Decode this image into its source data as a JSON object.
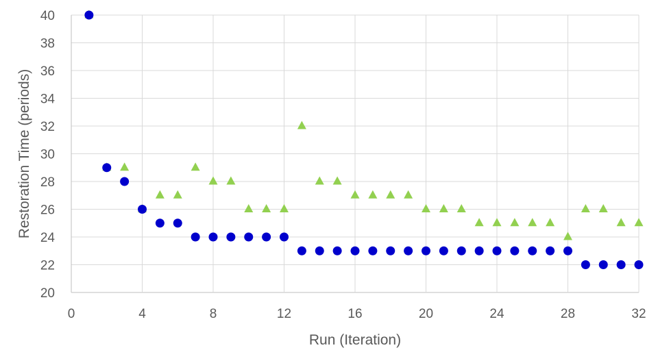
{
  "chart_data": {
    "type": "scatter",
    "title": "",
    "xlabel": "Run (Iteration)",
    "ylabel": "Restoration Time (periods)",
    "xlim": [
      0,
      32
    ],
    "ylim": [
      20,
      40
    ],
    "xticks": [
      0,
      4,
      8,
      12,
      16,
      20,
      24,
      28,
      32
    ],
    "yticks": [
      20,
      22,
      24,
      26,
      28,
      30,
      32,
      34,
      36,
      38,
      40
    ],
    "grid": true,
    "legend": "none",
    "series": [
      {
        "marker": "triangle",
        "color": "#92d050",
        "points": [
          [
            1,
            40
          ],
          [
            2,
            29
          ],
          [
            3,
            29
          ],
          [
            4,
            26
          ],
          [
            5,
            27
          ],
          [
            6,
            27
          ],
          [
            7,
            29
          ],
          [
            8,
            28
          ],
          [
            9,
            28
          ],
          [
            10,
            26
          ],
          [
            11,
            26
          ],
          [
            12,
            26
          ],
          [
            13,
            32
          ],
          [
            14,
            28
          ],
          [
            15,
            28
          ],
          [
            16,
            27
          ],
          [
            17,
            27
          ],
          [
            18,
            27
          ],
          [
            19,
            27
          ],
          [
            20,
            26
          ],
          [
            21,
            26
          ],
          [
            22,
            26
          ],
          [
            23,
            25
          ],
          [
            24,
            25
          ],
          [
            25,
            25
          ],
          [
            26,
            25
          ],
          [
            27,
            25
          ],
          [
            28,
            24
          ],
          [
            29,
            26
          ],
          [
            30,
            26
          ],
          [
            31,
            25
          ],
          [
            32,
            25
          ]
        ]
      },
      {
        "marker": "circle",
        "color": "#0000cc",
        "points": [
          [
            1,
            40
          ],
          [
            2,
            29
          ],
          [
            3,
            28
          ],
          [
            4,
            26
          ],
          [
            5,
            25
          ],
          [
            6,
            25
          ],
          [
            7,
            24
          ],
          [
            8,
            24
          ],
          [
            9,
            24
          ],
          [
            10,
            24
          ],
          [
            11,
            24
          ],
          [
            12,
            24
          ],
          [
            13,
            23
          ],
          [
            14,
            23
          ],
          [
            15,
            23
          ],
          [
            16,
            23
          ],
          [
            17,
            23
          ],
          [
            18,
            23
          ],
          [
            19,
            23
          ],
          [
            20,
            23
          ],
          [
            21,
            23
          ],
          [
            22,
            23
          ],
          [
            23,
            23
          ],
          [
            24,
            23
          ],
          [
            25,
            23
          ],
          [
            26,
            23
          ],
          [
            27,
            23
          ],
          [
            28,
            23
          ],
          [
            29,
            22
          ],
          [
            30,
            22
          ],
          [
            31,
            22
          ],
          [
            32,
            22
          ]
        ]
      }
    ]
  }
}
